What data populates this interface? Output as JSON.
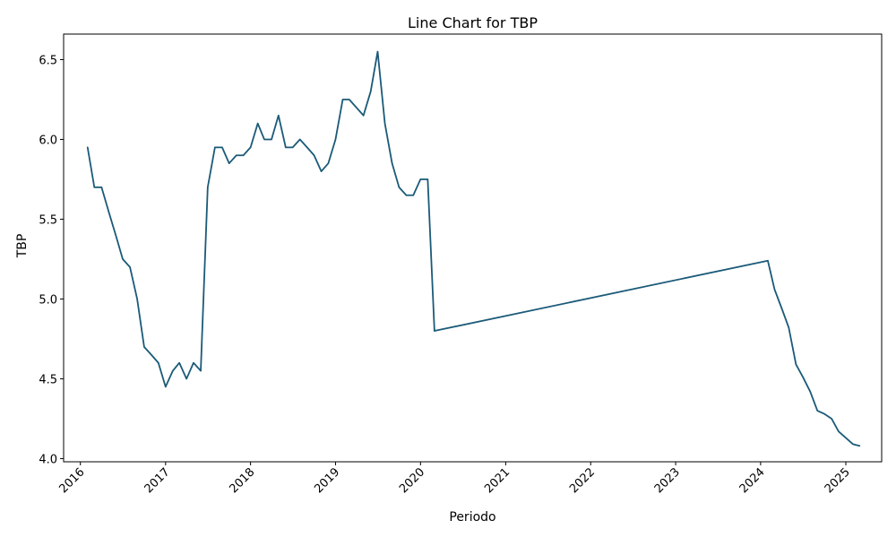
{
  "chart_data": {
    "type": "line",
    "title": "Line Chart for TBP",
    "xlabel": "Periodo",
    "ylabel": "TBP",
    "x_ticks": [
      "2016",
      "2017",
      "2018",
      "2019",
      "2020",
      "2021",
      "2022",
      "2023",
      "2024",
      "2025"
    ],
    "y_ticks": [
      "4.0",
      "4.5",
      "5.0",
      "5.5",
      "6.0",
      "6.5"
    ],
    "ylim": [
      3.98,
      6.66
    ],
    "xlim": [
      "2015-10-21",
      "2025-06-04"
    ],
    "grid": false,
    "line_color": "#1a5a78",
    "series": [
      {
        "points": [
          [
            "2016-02-01",
            5.95
          ],
          [
            "2016-03-01",
            5.7
          ],
          [
            "2016-04-01",
            5.7
          ],
          [
            "2016-05-01",
            5.55
          ],
          [
            "2016-06-01",
            5.4
          ],
          [
            "2016-07-01",
            5.25
          ],
          [
            "2016-08-01",
            5.2
          ],
          [
            "2016-09-01",
            5.0
          ],
          [
            "2016-10-01",
            4.7
          ],
          [
            "2016-11-01",
            4.65
          ],
          [
            "2016-12-01",
            4.6
          ],
          [
            "2017-01-01",
            4.45
          ],
          [
            "2017-02-01",
            4.55
          ],
          [
            "2017-03-01",
            4.6
          ],
          [
            "2017-04-01",
            4.5
          ],
          [
            "2017-05-01",
            4.6
          ],
          [
            "2017-06-01",
            4.55
          ],
          [
            "2017-07-01",
            5.7
          ],
          [
            "2017-08-01",
            5.95
          ],
          [
            "2017-09-01",
            5.95
          ],
          [
            "2017-10-01",
            5.85
          ],
          [
            "2017-11-01",
            5.9
          ],
          [
            "2017-12-01",
            5.9
          ],
          [
            "2018-01-01",
            5.95
          ],
          [
            "2018-02-01",
            6.1
          ],
          [
            "2018-03-01",
            6.0
          ],
          [
            "2018-04-01",
            6.0
          ],
          [
            "2018-05-01",
            6.15
          ],
          [
            "2018-06-01",
            5.95
          ],
          [
            "2018-07-01",
            5.95
          ],
          [
            "2018-08-01",
            6.0
          ],
          [
            "2018-09-01",
            5.95
          ],
          [
            "2018-10-01",
            5.9
          ],
          [
            "2018-11-01",
            5.8
          ],
          [
            "2018-12-01",
            5.85
          ],
          [
            "2019-01-01",
            6.0
          ],
          [
            "2019-02-01",
            6.25
          ],
          [
            "2019-03-01",
            6.25
          ],
          [
            "2019-05-01",
            6.15
          ],
          [
            "2019-06-01",
            6.3
          ],
          [
            "2019-07-01",
            6.55
          ],
          [
            "2019-08-01",
            6.1
          ],
          [
            "2019-09-01",
            5.85
          ],
          [
            "2019-10-01",
            5.7
          ],
          [
            "2019-11-01",
            5.65
          ],
          [
            "2019-12-01",
            5.65
          ],
          [
            "2020-01-01",
            5.75
          ],
          [
            "2020-02-01",
            5.75
          ],
          [
            "2020-03-01",
            4.8
          ],
          [
            "2024-02-01",
            5.24
          ],
          [
            "2024-03-01",
            5.06
          ],
          [
            "2024-04-01",
            4.94
          ],
          [
            "2024-05-01",
            4.82
          ],
          [
            "2024-06-01",
            4.59
          ],
          [
            "2024-07-01",
            4.51
          ],
          [
            "2024-08-01",
            4.42
          ],
          [
            "2024-09-01",
            4.3
          ],
          [
            "2024-10-01",
            4.28
          ],
          [
            "2024-11-01",
            4.25
          ],
          [
            "2024-12-01",
            4.17
          ],
          [
            "2025-01-01",
            4.13
          ],
          [
            "2025-02-01",
            4.09
          ],
          [
            "2025-03-01",
            4.08
          ]
        ]
      }
    ]
  }
}
